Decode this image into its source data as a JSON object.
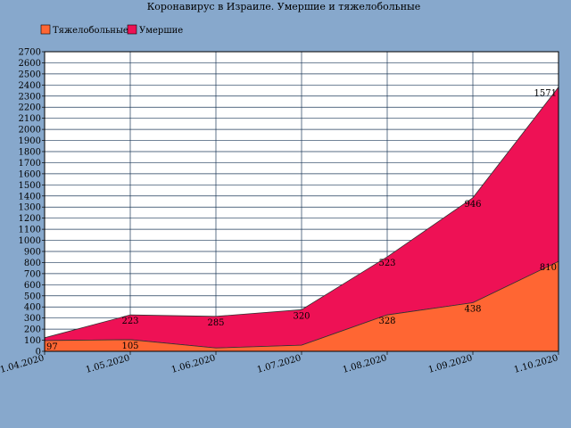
{
  "chart_data": {
    "type": "area",
    "stacked": true,
    "title": "Коронавирус в Израиле. Умершие и тяжелобольные",
    "xlabel": "",
    "ylabel": "",
    "categories": [
      "1.04.2020",
      "1.05.2020",
      "1.06.2020",
      "1.07.2020",
      "1.08.2020",
      "1.09.2020",
      "1.10.2020"
    ],
    "series": [
      {
        "name": "Тяжелобольные",
        "color": "#ff6633",
        "values": [
          97,
          105,
          30,
          55,
          328,
          438,
          810
        ],
        "labels": [
          "97",
          "105",
          "",
          "",
          "328",
          "438",
          "810"
        ]
      },
      {
        "name": "Умершие",
        "color": "#ee1155",
        "values": [
          25,
          223,
          285,
          320,
          523,
          946,
          1571
        ],
        "labels": [
          "",
          "223",
          "285",
          "320",
          "523",
          "946",
          "1571"
        ]
      }
    ],
    "ylim": [
      0,
      2700
    ],
    "ytick_step": 100,
    "grid": true,
    "legend_position": "top-left"
  }
}
